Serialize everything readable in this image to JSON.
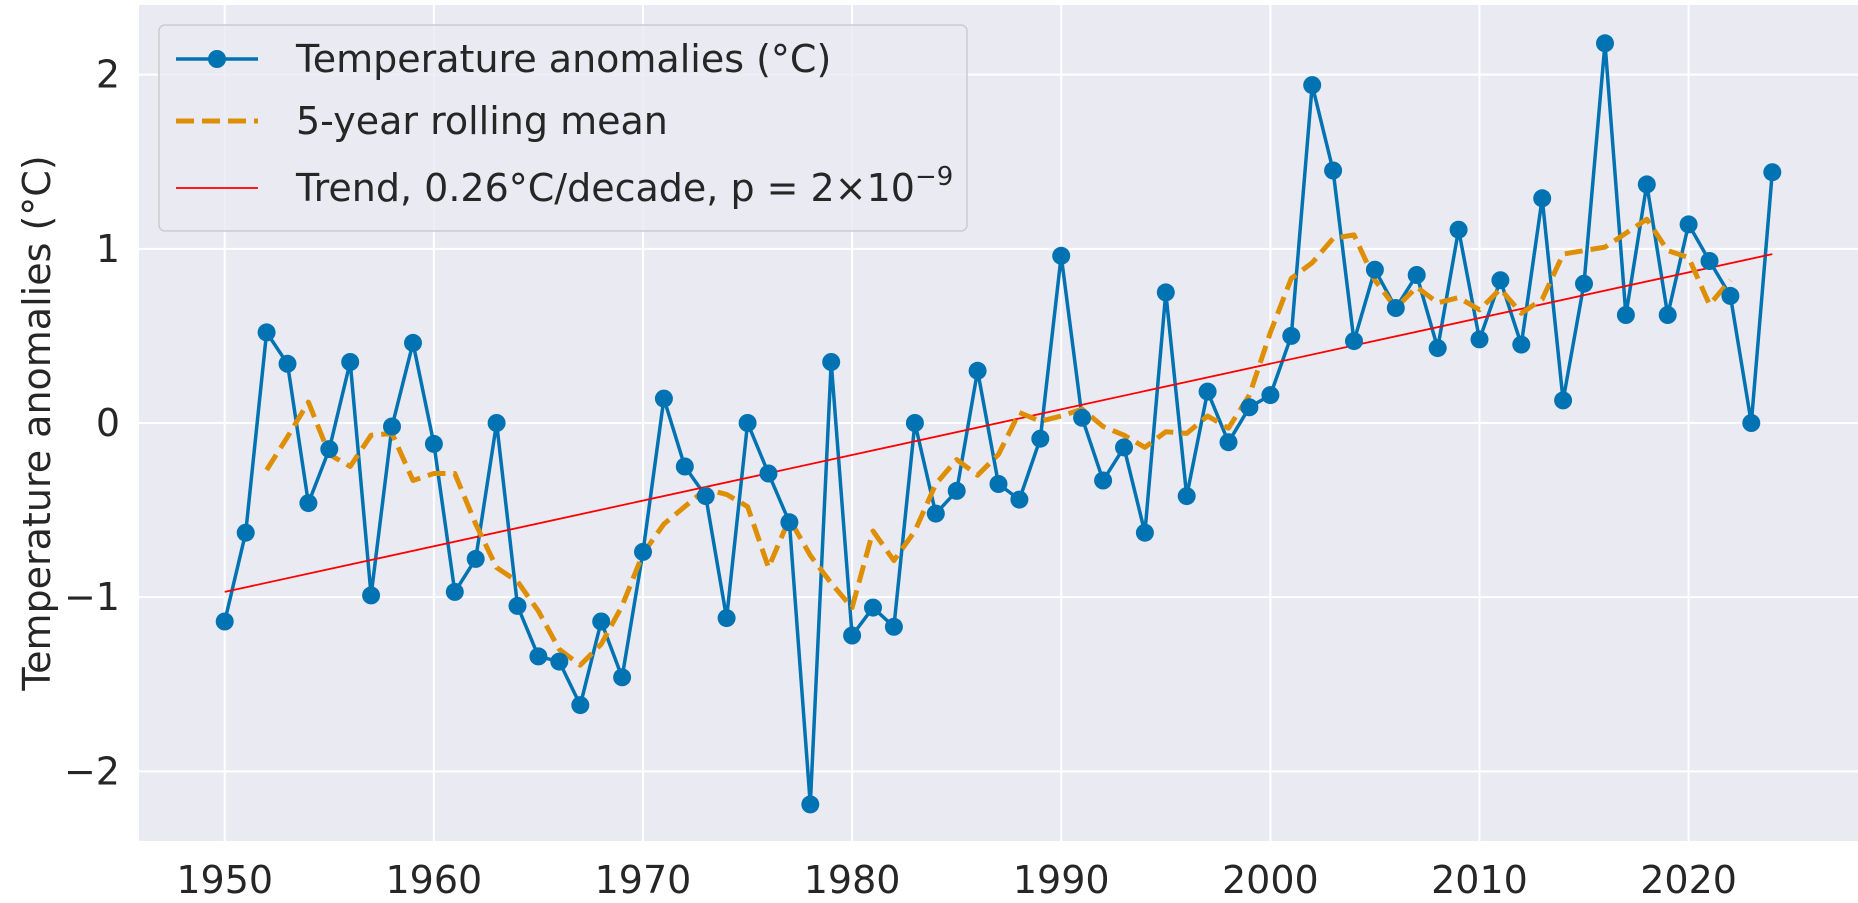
{
  "chart_data": {
    "type": "line",
    "title": "",
    "xlabel": "",
    "ylabel": "Temperature anomalies (°C)",
    "xlim": [
      1945.9,
      2028.1
    ],
    "ylim": [
      -2.4,
      2.4
    ],
    "x_ticks": [
      1950,
      1960,
      1970,
      1980,
      1990,
      2000,
      2010,
      2020
    ],
    "y_ticks": [
      -2,
      -1,
      0,
      1,
      2
    ],
    "y_tick_labels": [
      "−2",
      "−1",
      "0",
      "1",
      "2"
    ],
    "grid": true,
    "legend_position": "top-left",
    "background_color": "#eaeaf2",
    "grid_color": "#ffffff",
    "series": [
      {
        "name": "Temperature anomalies (°C)",
        "style": "line-markers",
        "color": "#0173b2",
        "x": [
          1950,
          1951,
          1952,
          1953,
          1954,
          1955,
          1956,
          1957,
          1958,
          1959,
          1960,
          1961,
          1962,
          1963,
          1964,
          1965,
          1966,
          1967,
          1968,
          1969,
          1970,
          1971,
          1972,
          1973,
          1974,
          1975,
          1976,
          1977,
          1978,
          1979,
          1980,
          1981,
          1982,
          1983,
          1984,
          1985,
          1986,
          1987,
          1988,
          1989,
          1990,
          1991,
          1992,
          1993,
          1994,
          1995,
          1996,
          1997,
          1998,
          1999,
          2000,
          2001,
          2002,
          2003,
          2004,
          2005,
          2006,
          2007,
          2008,
          2009,
          2010,
          2011,
          2012,
          2013,
          2014,
          2015,
          2016,
          2017,
          2018,
          2019,
          2020,
          2021,
          2022,
          2023,
          2024
        ],
        "y": [
          -1.14,
          -0.63,
          0.52,
          0.34,
          -0.46,
          -0.15,
          0.35,
          -0.99,
          -0.02,
          0.46,
          -0.12,
          -0.97,
          -0.78,
          0.0,
          -1.05,
          -1.34,
          -1.37,
          -1.62,
          -1.14,
          -1.46,
          -0.74,
          0.14,
          -0.25,
          -0.42,
          -1.12,
          0.0,
          -0.29,
          -0.57,
          -2.19,
          0.35,
          -1.22,
          -1.06,
          -1.17,
          0.0,
          -0.52,
          -0.39,
          0.3,
          -0.35,
          -0.44,
          -0.09,
          0.96,
          0.03,
          -0.33,
          -0.14,
          -0.63,
          0.75,
          -0.42,
          0.18,
          -0.11,
          0.09,
          0.16,
          0.5,
          1.94,
          1.45,
          0.47,
          0.88,
          0.66,
          0.85,
          0.43,
          1.11,
          0.48,
          0.82,
          0.45,
          1.29,
          0.13,
          0.8,
          2.18,
          0.62,
          1.37,
          0.62,
          1.14,
          0.93,
          0.73,
          0.0,
          1.44
        ]
      },
      {
        "name": "5-year rolling mean",
        "style": "dashed",
        "color": "#de8f05",
        "x": [
          1952,
          1953,
          1954,
          1955,
          1956,
          1957,
          1958,
          1959,
          1960,
          1961,
          1962,
          1963,
          1964,
          1965,
          1966,
          1967,
          1968,
          1969,
          1970,
          1971,
          1972,
          1973,
          1974,
          1975,
          1976,
          1977,
          1978,
          1979,
          1980,
          1981,
          1982,
          1983,
          1984,
          1985,
          1986,
          1987,
          1988,
          1989,
          1990,
          1991,
          1992,
          1993,
          1994,
          1995,
          1996,
          1997,
          1998,
          1999,
          2000,
          2001,
          2002,
          2003,
          2004,
          2005,
          2006,
          2007,
          2008,
          2009,
          2010,
          2011,
          2012,
          2013,
          2014,
          2015,
          2016,
          2017,
          2018,
          2019,
          2020,
          2021,
          2022
        ],
        "y": [
          -0.27,
          -0.08,
          0.12,
          -0.18,
          -0.25,
          -0.07,
          -0.06,
          -0.33,
          -0.29,
          -0.29,
          -0.58,
          -0.83,
          -0.91,
          -1.08,
          -1.3,
          -1.39,
          -1.27,
          -1.05,
          -0.75,
          -0.58,
          -0.48,
          -0.38,
          -0.41,
          -0.48,
          -0.83,
          -0.55,
          -0.76,
          -0.92,
          -1.06,
          -0.62,
          -0.79,
          -0.62,
          -0.35,
          -0.21,
          -0.3,
          -0.18,
          0.06,
          0.01,
          0.04,
          0.08,
          -0.02,
          -0.07,
          -0.14,
          -0.05,
          -0.06,
          0.04,
          -0.03,
          0.16,
          0.52,
          0.83,
          0.92,
          1.06,
          1.08,
          0.82,
          0.66,
          0.78,
          0.69,
          0.72,
          0.65,
          0.77,
          0.63,
          0.71,
          0.97,
          0.99,
          1.01,
          1.09,
          1.17,
          0.99,
          0.95,
          0.68,
          0.82
        ]
      },
      {
        "name": "Trend, 0.26°C/decade, p = 2×10",
        "name_superscript": "−9",
        "style": "line",
        "color": "#ff0000",
        "x": [
          1950,
          2024
        ],
        "y": [
          -0.97,
          0.97
        ]
      }
    ]
  }
}
